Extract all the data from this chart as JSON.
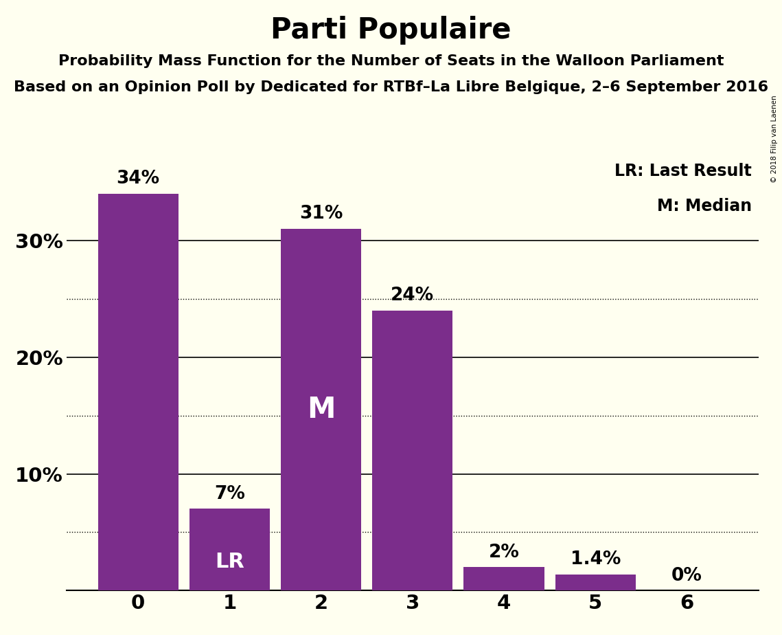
{
  "title": "Parti Populaire",
  "subtitle1": "Probability Mass Function for the Number of Seats in the Walloon Parliament",
  "subtitle2": "Based on an Opinion Poll by Dedicated for RTBf–La Libre Belgique, 2–6 September 2016",
  "watermark": "© 2018 Filip van Laenen",
  "categories": [
    0,
    1,
    2,
    3,
    4,
    5,
    6
  ],
  "values": [
    34,
    7,
    31,
    24,
    2,
    1.4,
    0
  ],
  "bar_labels": [
    "34%",
    "7%",
    "31%",
    "24%",
    "2%",
    "1.4%",
    "0%"
  ],
  "bar_color": "#7B2D8B",
  "background_color": "#FFFFF0",
  "label_LR": "LR",
  "label_M": "M",
  "LR_bar": 1,
  "M_bar": 2,
  "legend_LR": "LR: Last Result",
  "legend_M": "M: Median",
  "solid_gridlines": [
    10,
    20,
    30
  ],
  "dotted_gridlines": [
    5,
    15,
    25
  ],
  "yticks": [
    10,
    20,
    30
  ],
  "ylim": [
    0,
    37
  ],
  "title_fontsize": 30,
  "subtitle_fontsize": 16,
  "bar_label_fontsize": 19,
  "axis_label_fontsize": 21,
  "inner_label_LR_fontsize": 22,
  "inner_label_M_fontsize": 30,
  "legend_fontsize": 17
}
